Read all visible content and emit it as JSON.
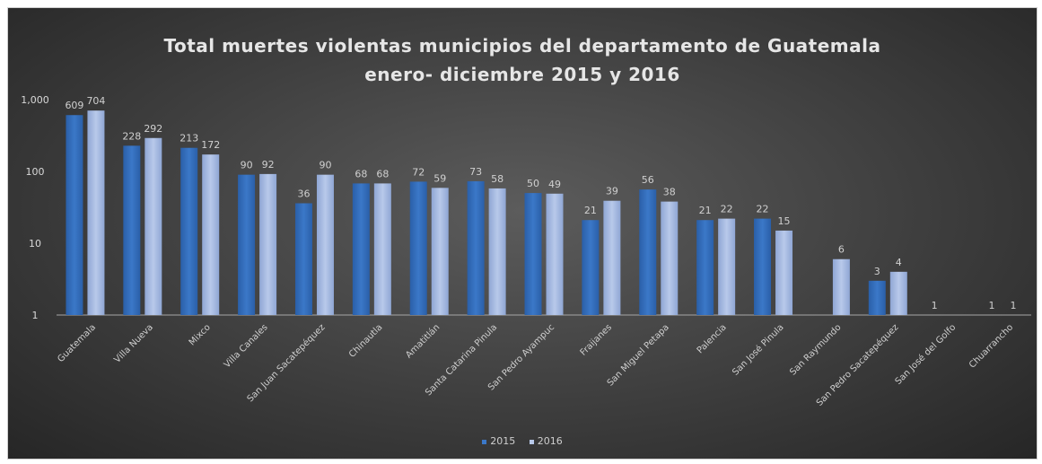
{
  "chart_data": {
    "type": "bar",
    "title": "Total muertes violentas municipios del departamento de Guatemala",
    "subtitle": "enero- diciembre 2015 y 2016",
    "xlabel": "",
    "ylabel": "",
    "yscale": "log",
    "ylim": [
      1,
      1000
    ],
    "yticks": [
      "1",
      "10",
      "100",
      "1,000"
    ],
    "grid": false,
    "legend_position": "bottom",
    "categories": [
      "Guatemala",
      "Villa Nueva",
      "Mixco",
      "Villa Canales",
      "San Juan Sacatepéquez",
      "Chinautla",
      "Amatitlán",
      "Santa Catarina Pinula",
      "San Pedro Ayampuc",
      "Fraijanes",
      "San Miguel Petapa",
      "Palencia",
      "San José Pinula",
      "San Raymundo",
      "San Pedro Sacatepéquez",
      "San José del Golfo",
      "Chuarrancho"
    ],
    "series": [
      {
        "name": "2015",
        "color": "#3b78c8",
        "values": [
          609,
          228,
          213,
          90,
          36,
          68,
          72,
          73,
          50,
          21,
          56,
          21,
          22,
          null,
          3,
          1,
          1
        ]
      },
      {
        "name": "2016",
        "color": "#b8c9ea",
        "values": [
          704,
          292,
          172,
          92,
          90,
          68,
          59,
          58,
          49,
          39,
          38,
          22,
          15,
          6,
          4,
          null,
          1
        ]
      }
    ]
  }
}
